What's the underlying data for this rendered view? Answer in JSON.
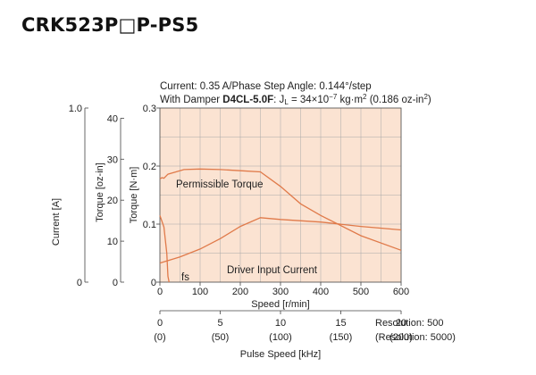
{
  "title": "CRK523P□P-PS5",
  "chart_data": {
    "type": "line",
    "conditions": {
      "line1": "Current: 0.35 A/Phase  Step Angle: 0.144°/step",
      "line2_prefix": "With Damper ",
      "damper_model": "D4CL-5.0F",
      "line2_suffix": ": J",
      "inertia_sub": "L",
      "inertia_value": " = 34×10",
      "inertia_exp": "−7",
      "inertia_unit": " kg·m",
      "unit_sup": "2",
      "inertia_alt": " (0.186 oz-in",
      "alt_sup": "2",
      "close": ")"
    },
    "x_axis": {
      "label": "Speed [r/min]",
      "range": [
        0,
        600
      ],
      "ticks": [
        0,
        100,
        200,
        300,
        400,
        500,
        600
      ]
    },
    "y_axis_torque_nm": {
      "label": "Torque [N·m]",
      "range": [
        0,
        0.3
      ],
      "ticks": [
        "0",
        "0.1",
        "0.2",
        "0.3"
      ],
      "tick_values": [
        0,
        0.1,
        0.2,
        0.3
      ]
    },
    "y_axis_torque_ozin": {
      "label": "Torque [oz-in]",
      "range": [
        0,
        42.48
      ],
      "ticks": [
        "0",
        "10",
        "20",
        "30",
        "40"
      ],
      "tick_values": [
        0,
        10,
        20,
        30,
        40
      ]
    },
    "y_axis_current": {
      "label": "Current [A]",
      "range": [
        0,
        1.0
      ],
      "ticks": [
        "0",
        "1.0"
      ],
      "tick_values": [
        0,
        1.0
      ]
    },
    "pulse_axis": {
      "label": "Pulse Speed [kHz]",
      "ticks_500": [
        "0",
        "5",
        "10",
        "15",
        "20"
      ],
      "ticks_5000": [
        "(0)",
        "(50)",
        "(100)",
        "(150)",
        "(200)"
      ],
      "tick_values_500": [
        0,
        5,
        10,
        15,
        20
      ],
      "resolution_500": "Resolution: 500",
      "resolution_5000": "(Resolution: 5000)"
    },
    "grid": true,
    "series": [
      {
        "name": "Permissible Torque",
        "axis": "torque_nm",
        "color": "#e07a4a",
        "x": [
          0,
          5,
          10,
          20,
          40,
          60,
          100,
          150,
          200,
          250,
          300,
          350,
          400,
          500,
          600
        ],
        "y": [
          0.178,
          0.18,
          0.179,
          0.186,
          0.19,
          0.194,
          0.195,
          0.194,
          0.192,
          0.19,
          0.165,
          0.135,
          0.115,
          0.08,
          0.055
        ]
      },
      {
        "name": "Driver Input Current",
        "axis": "current",
        "color": "#e07a4a",
        "x": [
          0,
          50,
          100,
          150,
          200,
          250,
          300,
          400,
          500,
          600
        ],
        "y": [
          0.11,
          0.145,
          0.19,
          0.25,
          0.32,
          0.37,
          0.36,
          0.345,
          0.32,
          0.3
        ]
      },
      {
        "name": "fs",
        "axis": "torque_nm",
        "color": "#e07a4a",
        "x": [
          0,
          10,
          17,
          20,
          23
        ],
        "y": [
          0.115,
          0.095,
          0.05,
          0.01,
          0.0
        ]
      }
    ],
    "annotations": {
      "permissible_torque": "Permissible Torque",
      "driver_input_current": "Driver Input Current",
      "fs": "fs"
    }
  }
}
